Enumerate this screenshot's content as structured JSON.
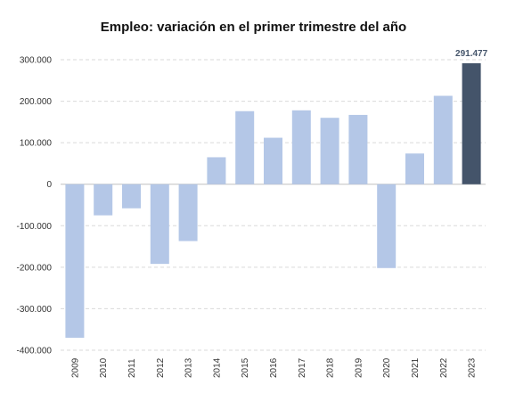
{
  "chart_data": {
    "type": "bar",
    "title": "Empleo: variación en el primer trimestre del año",
    "xlabel": "",
    "ylabel": "",
    "categories": [
      "2009",
      "2010",
      "2011",
      "2012",
      "2013",
      "2014",
      "2015",
      "2016",
      "2017",
      "2018",
      "2019",
      "2020",
      "2021",
      "2022",
      "2023"
    ],
    "values": [
      -370000,
      -75000,
      -58000,
      -192000,
      -137000,
      65000,
      176000,
      112000,
      178000,
      160000,
      167000,
      -202000,
      74000,
      213000,
      291477
    ],
    "ylim": [
      -400000,
      300000
    ],
    "yticks": [
      300000,
      200000,
      100000,
      0,
      -100000,
      -200000,
      -300000,
      -400000
    ],
    "ytick_labels": [
      "300.000",
      "200.000",
      "100.000",
      "0",
      "-100.000",
      "-200.000",
      "-300.000",
      "-400.000"
    ],
    "highlight_index": 14,
    "highlight_label": "291.477",
    "grid": true,
    "legend": "none",
    "colors": {
      "bar": "#b4c7e7",
      "highlight": "#44546a",
      "label": "#44546a"
    }
  }
}
